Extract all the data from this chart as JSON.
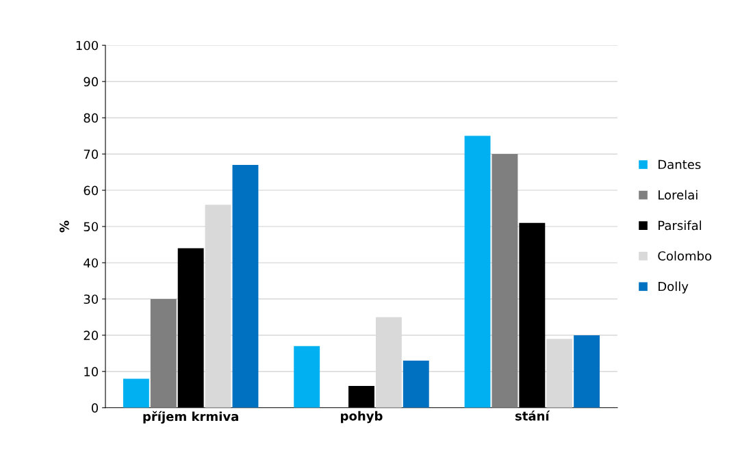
{
  "chart_data": {
    "type": "bar",
    "ylabel": "%",
    "categories": [
      "příjem krmiva",
      "pohyb",
      "stání"
    ],
    "series": [
      {
        "name": "Dantes",
        "color": "#00b0f0",
        "values": [
          8,
          17,
          75
        ]
      },
      {
        "name": "Lorelai",
        "color": "#7f7f7f",
        "values": [
          30,
          0,
          70
        ]
      },
      {
        "name": "Parsifal",
        "color": "#000000",
        "values": [
          44,
          6,
          51
        ]
      },
      {
        "name": "Colombo",
        "color": "#d9d9d9",
        "values": [
          56,
          25,
          19
        ]
      },
      {
        "name": "Dolly",
        "color": "#0070c0",
        "values": [
          67,
          13,
          20
        ]
      }
    ],
    "ylim": [
      0,
      100
    ],
    "yticks": [
      0,
      10,
      20,
      30,
      40,
      50,
      60,
      70,
      80,
      90,
      100
    ],
    "grid": "y",
    "legend": "right"
  }
}
